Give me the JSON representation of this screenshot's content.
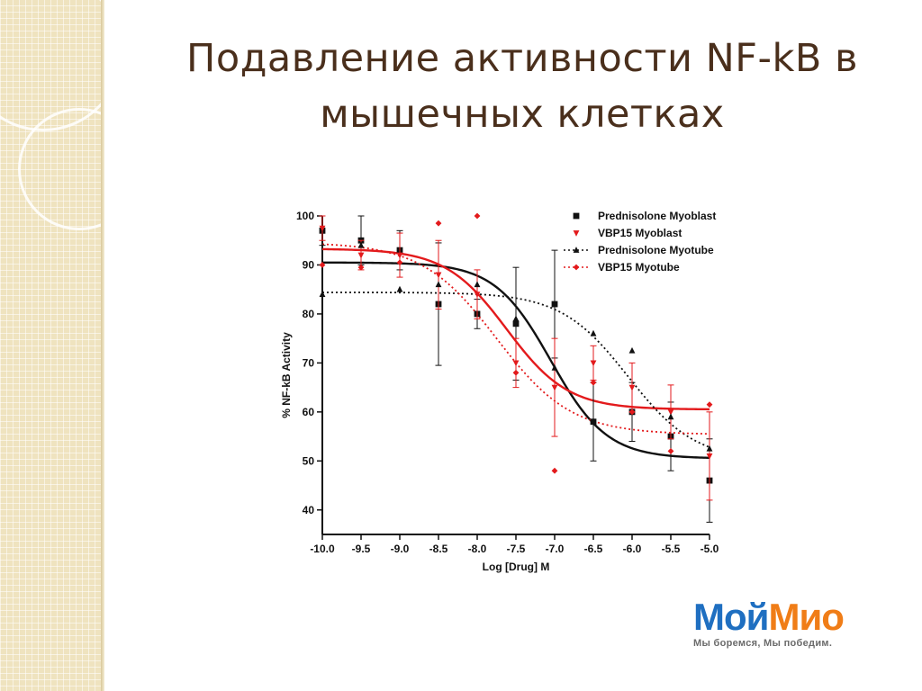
{
  "slide": {
    "title_line1": "Подавление активности NF-kB в",
    "title_line2": "мышечных клетках",
    "background_accent": "#efe3bf",
    "title_color": "#4a2f1c"
  },
  "logo": {
    "part1": "Мой",
    "part2": "Мио",
    "slogan": "Мы боремся, Мы победим.",
    "color1": "#1f6fc1",
    "color2": "#f07d17"
  },
  "chart_data": {
    "type": "scatter",
    "xlabel": "Log [Drug] M",
    "ylabel": "% NF-kB Activity",
    "xlim": [
      -10.0,
      -5.0
    ],
    "ylim": [
      35,
      100
    ],
    "x_ticks": [
      "-10.0",
      "-9.5",
      "-9.0",
      "-8.5",
      "-8.0",
      "-7.5",
      "-7.0",
      "-6.5",
      "-6.0",
      "-5.5",
      "-5.0"
    ],
    "y_ticks": [
      "40",
      "50",
      "60",
      "70",
      "80",
      "90",
      "100"
    ],
    "legend_placement": "top-right",
    "grid": false,
    "series": [
      {
        "name": "Prednisolone Myoblast",
        "color": "#111111",
        "marker": "square",
        "fit_line": "solid",
        "fit": {
          "top": 90.5,
          "bottom": 50.5,
          "logIC50": -7.05,
          "hill": 1.2
        },
        "x": [
          -10.0,
          -9.5,
          -9.0,
          -8.5,
          -8.0,
          -7.5,
          -7.0,
          -6.5,
          -6.0,
          -5.5,
          -5.0
        ],
        "y": [
          97.0,
          95.0,
          93.0,
          82.0,
          80.0,
          78.0,
          82.0,
          58.0,
          60.0,
          55.0,
          46.0
        ],
        "err": [
          3,
          5,
          4,
          12.5,
          3,
          11.5,
          11,
          8,
          6,
          7,
          8.5
        ]
      },
      {
        "name": "VBP15 Myoblast",
        "color": "#e31a1c",
        "marker": "triangle-down",
        "fit_line": "solid",
        "fit": {
          "top": 93.3,
          "bottom": 60.5,
          "logIC50": -7.62,
          "hill": 1.1
        },
        "x": [
          -10.0,
          -9.5,
          -9.0,
          -8.5,
          -8.0,
          -7.5,
          -7.0,
          -6.5,
          -6.0,
          -5.5,
          -5.0
        ],
        "y": [
          97.5,
          92.0,
          92.0,
          88.0,
          84.0,
          70.0,
          65.0,
          70.0,
          65.0,
          60.0,
          51.0
        ],
        "err": [
          2.5,
          3,
          4.5,
          7,
          5,
          5,
          10,
          3.5,
          5,
          5.5,
          9
        ]
      },
      {
        "name": "Prednisolone Myotube",
        "color": "#111111",
        "marker": "triangle-up",
        "fit_line": "dotted",
        "fit": {
          "top": 84.4,
          "bottom": 50.0,
          "logIC50": -6.05,
          "hill": 1.0
        },
        "x": [
          -10.0,
          -9.5,
          -9.0,
          -8.5,
          -8.0,
          -7.5,
          -7.0,
          -6.5,
          -6.0,
          -5.5,
          -5.0
        ],
        "y": [
          84.0,
          94.0,
          85.0,
          86.0,
          86.0,
          79.0,
          69.0,
          76.0,
          72.5,
          59.0,
          52.5
        ],
        "err": [
          0,
          0,
          0,
          0,
          0,
          0,
          0,
          0,
          0,
          0,
          0
        ]
      },
      {
        "name": "VBP15 Myotube",
        "color": "#e31a1c",
        "marker": "diamond",
        "fit_line": "dotted",
        "fit": {
          "top": 94.6,
          "bottom": 55.4,
          "logIC50": -7.75,
          "hill": 0.9
        },
        "x": [
          -10.0,
          -9.5,
          -9.0,
          -8.5,
          -8.0,
          -7.5,
          -7.0,
          -6.5,
          -6.0,
          -5.5,
          -5.0
        ],
        "y": [
          90.0,
          89.5,
          90.5,
          98.5,
          100.0,
          68.0,
          48.0,
          66.0,
          60.0,
          52.0,
          61.5
        ],
        "err": [
          0,
          0,
          0,
          0,
          0,
          0,
          0,
          0,
          0,
          0,
          0
        ]
      }
    ]
  }
}
